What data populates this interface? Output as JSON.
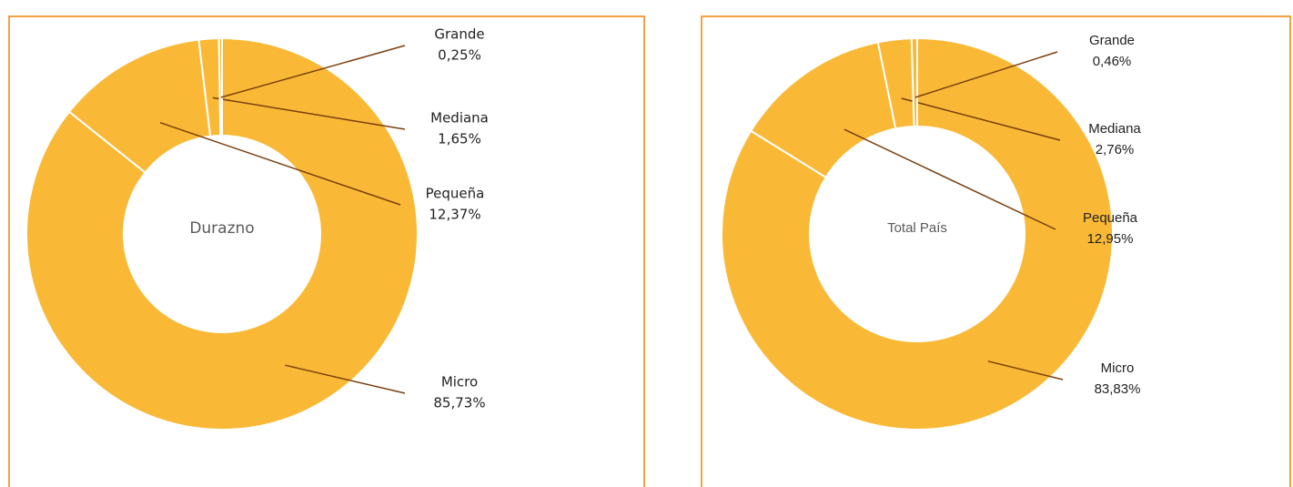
{
  "chart_data": [
    {
      "type": "donut",
      "center_label": "Durazno",
      "color": "#F9B936",
      "categories": [
        "Micro",
        "Pequeña",
        "Mediana",
        "Grande"
      ],
      "values": [
        85.73,
        12.37,
        1.65,
        0.25
      ],
      "value_labels": [
        "85,73%",
        "12,37%",
        "1,65%",
        "0,25%"
      ]
    },
    {
      "type": "donut",
      "center_label": "Total País",
      "color": "#F9B936",
      "categories": [
        "Micro",
        "Pequeña",
        "Mediana",
        "Grande"
      ],
      "values": [
        83.83,
        12.95,
        2.76,
        0.46
      ],
      "value_labels": [
        "83,83%",
        "12,95%",
        "2,76%",
        "0,46%"
      ]
    }
  ]
}
